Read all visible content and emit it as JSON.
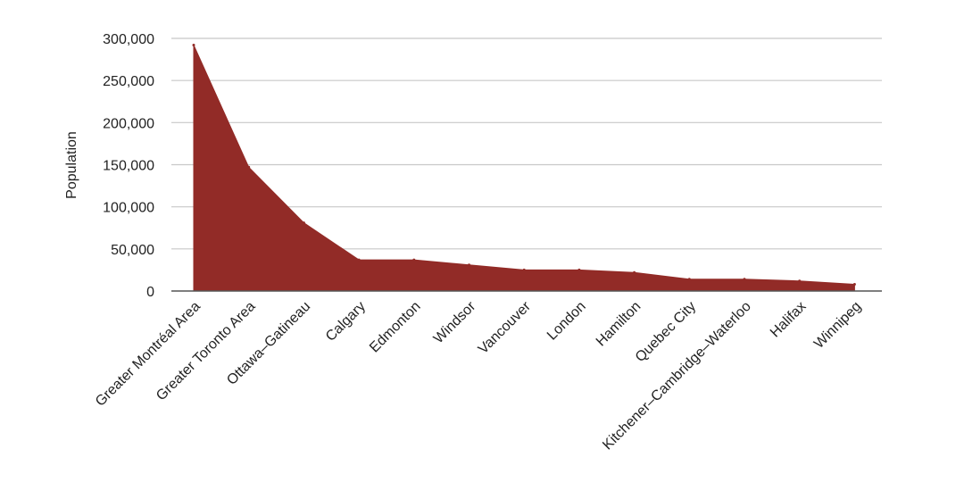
{
  "chart_data": {
    "type": "area",
    "categories": [
      "Greater Montréal Area",
      "Greater Toronto Area",
      "Ottawa–Gatineau",
      "Calgary",
      "Edmonton",
      "Windsor",
      "Vancouver",
      "London",
      "Hamilton",
      "Quebec City",
      "Kitchener–Cambridge–Waterloo",
      "Halifax",
      "Winnipeg"
    ],
    "values": [
      292000,
      147000,
      81000,
      37000,
      37000,
      31000,
      25000,
      25000,
      22000,
      14000,
      14000,
      12000,
      8000
    ],
    "ylabel": "Population",
    "xlabel": "",
    "ylim": [
      0,
      300000
    ],
    "yticks": [
      0,
      50000,
      100000,
      150000,
      200000,
      250000,
      300000
    ],
    "ytick_labels": [
      "0",
      "50,000",
      "100,000",
      "150,000",
      "200,000",
      "250,000",
      "300,000"
    ],
    "grid": true,
    "legend": "none",
    "color": "#922b27"
  }
}
